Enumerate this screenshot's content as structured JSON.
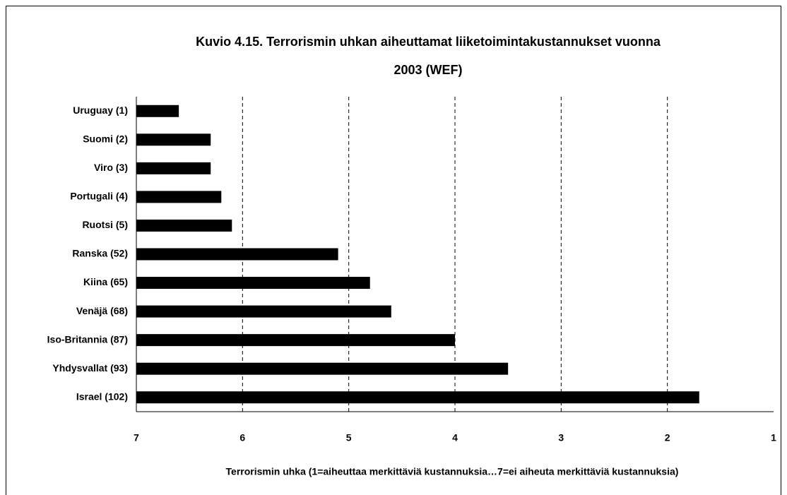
{
  "chart_data": {
    "type": "bar",
    "orientation": "horizontal",
    "title": [
      "Kuvio 4.15. Terrorismin uhkan aiheuttamat liiketoimintakustannukset vuonna",
      "2003 (WEF)"
    ],
    "xlabel": "Terrorismin uhka (1=aiheuttaa merkittäviä kustannuksia…7=ei aiheuta merkittäviä kustannuksia)",
    "categories": [
      "Uruguay (1)",
      "Suomi (2)",
      "Viro (3)",
      "Portugali (4)",
      "Ruotsi (5)",
      "Ranska (52)",
      "Kiina (65)",
      "Venäjä (68)",
      "Iso-Britannia (87)",
      "Yhdysvallat (93)",
      "Israel (102)"
    ],
    "values": [
      6.6,
      6.3,
      6.3,
      6.2,
      6.1,
      5.1,
      4.8,
      4.6,
      4.0,
      3.5,
      1.7
    ],
    "color": "#000000",
    "xlim": [
      7,
      1
    ],
    "xticks": [
      7,
      6,
      5,
      4,
      3,
      2,
      1
    ],
    "grid": true
  }
}
